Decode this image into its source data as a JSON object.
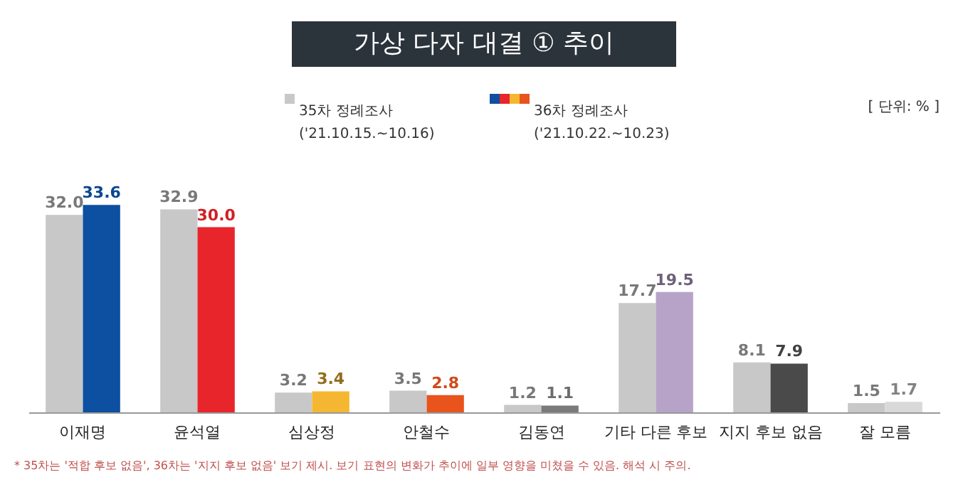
{
  "chart_data": {
    "type": "bar",
    "title": "가상 다자 대결 ① 추이",
    "categories": [
      "이재명",
      "윤석열",
      "심상정",
      "안철수",
      "김동연",
      "기타 다른 후보",
      "지지 후보 없음",
      "잘 모름"
    ],
    "series": [
      {
        "name": "35차 정례조사\n('21.10.15.~10.16)",
        "color": "#c8c8c8",
        "values": [
          32.0,
          32.9,
          3.2,
          3.5,
          1.2,
          17.7,
          8.1,
          1.5
        ],
        "value_labels": [
          "32.0",
          "32.9",
          "3.2",
          "3.5",
          "1.2",
          "17.7",
          "8.1",
          "1.5"
        ]
      },
      {
        "name": "36차 정례조사\n('21.10.22.~10.23)",
        "colors": [
          "#0d4fa0",
          "#e8252a",
          "#f5b731",
          "#e8541c",
          "#7a7a7a",
          "#b8a3c8",
          "#4a4a4a",
          "#d9d9d9"
        ],
        "values": [
          33.6,
          30.0,
          3.4,
          2.8,
          1.1,
          19.5,
          7.9,
          1.7
        ],
        "value_labels": [
          "33.6",
          "30.0",
          "3.4",
          "2.8",
          "1.1",
          "19.5",
          "7.9",
          "1.7"
        ]
      }
    ],
    "legend": "top",
    "grid": false,
    "annotations": [
      "[ 단위: % ]",
      "* 35차는 '적합 후보 없음', 36차는 '지지 후보 없음' 보기 제시. 보기 표현의 변화가 추이에 일부 영향을 미쳤을 수 있음. 해석 시 주의."
    ]
  }
}
